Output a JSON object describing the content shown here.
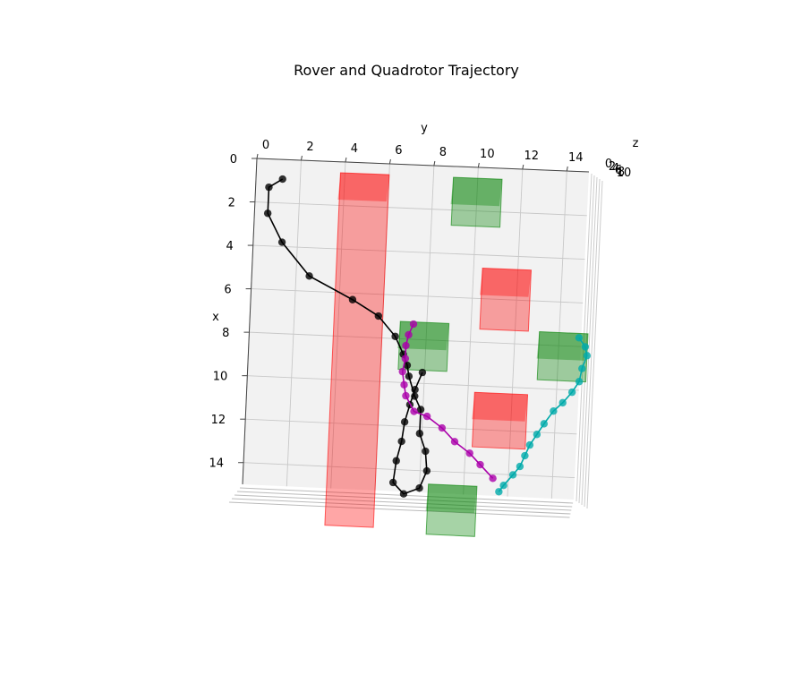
{
  "chart_data": {
    "type": "scatter",
    "title": "Rover and Quadrotor Trajectory",
    "xlabel": "x",
    "ylabel": "y",
    "zlabel": "z",
    "xlim": [
      0,
      15
    ],
    "ylim": [
      0,
      15
    ],
    "zlim": [
      0,
      10
    ],
    "x_ticks": [
      "0",
      "2",
      "4",
      "6",
      "8",
      "10",
      "12",
      "14"
    ],
    "y_ticks": [
      "0",
      "2",
      "4",
      "6",
      "8",
      "10",
      "12",
      "14"
    ],
    "z_ticks": [
      "0",
      "2",
      "4",
      "6",
      "8",
      "10"
    ],
    "grid": true,
    "colors": {
      "rover": "#000000",
      "quad_magenta": "#aa00aa",
      "quad_cyan": "#00aaaa",
      "obstacle_red": "#ff0000",
      "obstacle_green": "#008000"
    },
    "obstacles": [
      {
        "color": "red",
        "x_range": [
          0.5,
          16.7
        ],
        "y_range": [
          3.8,
          6.0
        ]
      },
      {
        "color": "red",
        "x_range": [
          4.6,
          7.4
        ],
        "y_range": [
          10.4,
          12.6
        ]
      },
      {
        "color": "red",
        "x_range": [
          10.3,
          12.8
        ],
        "y_range": [
          10.3,
          12.7
        ]
      },
      {
        "color": "green",
        "x_range": [
          0.5,
          2.7
        ],
        "y_range": [
          8.9,
          11.1
        ]
      },
      {
        "color": "green",
        "x_range": [
          7.2,
          9.4
        ],
        "y_range": [
          6.8,
          9.0
        ]
      },
      {
        "color": "green",
        "x_range": [
          7.4,
          9.6
        ],
        "y_range": [
          13.1,
          15.3
        ]
      },
      {
        "color": "green",
        "x_range": [
          14.6,
          16.9
        ],
        "y_range": [
          8.4,
          10.6
        ]
      }
    ],
    "series": [
      {
        "name": "",
        "color": "black",
        "x": [
          0.9,
          1.3,
          2.5,
          3.8,
          5.3,
          6.3,
          7.0,
          7.9,
          8.7,
          9.2,
          9.7,
          10.6,
          11.2,
          12.3,
          13.1,
          14.0,
          14.8,
          15.1,
          14.6,
          13.6,
          12.7,
          11.8,
          11.0,
          10.3,
          9.5
        ],
        "y": [
          1.2,
          0.6,
          0.6,
          1.3,
          2.6,
          4.6,
          5.8,
          6.6,
          7.0,
          7.2,
          7.3,
          7.6,
          7.9,
          7.9,
          8.2,
          8.3,
          8.0,
          7.3,
          6.8,
          6.9,
          7.1,
          7.2,
          7.4,
          7.6,
          7.9
        ]
      },
      {
        "name": "",
        "color": "magenta",
        "x": [
          7.3,
          7.8,
          8.3,
          8.9,
          9.5,
          10.1,
          10.6,
          11.3,
          11.5,
          12.0,
          12.6,
          13.1,
          13.6,
          14.2
        ],
        "y": [
          7.4,
          7.2,
          7.1,
          7.1,
          7.0,
          7.1,
          7.2,
          7.6,
          8.2,
          8.9,
          9.5,
          10.2,
          10.7,
          11.3
        ]
      },
      {
        "name": "",
        "color": "cyan",
        "x": [
          14.8,
          14.5,
          14.0,
          13.6,
          13.1,
          12.6,
          12.1,
          11.6,
          11.0,
          10.6,
          10.1,
          9.6,
          9.0,
          8.4,
          8.0,
          7.6
        ],
        "y": [
          11.6,
          11.8,
          12.2,
          12.5,
          12.7,
          12.9,
          13.2,
          13.5,
          13.9,
          14.3,
          14.7,
          15.0,
          15.1,
          15.3,
          15.2,
          14.9
        ]
      }
    ]
  }
}
